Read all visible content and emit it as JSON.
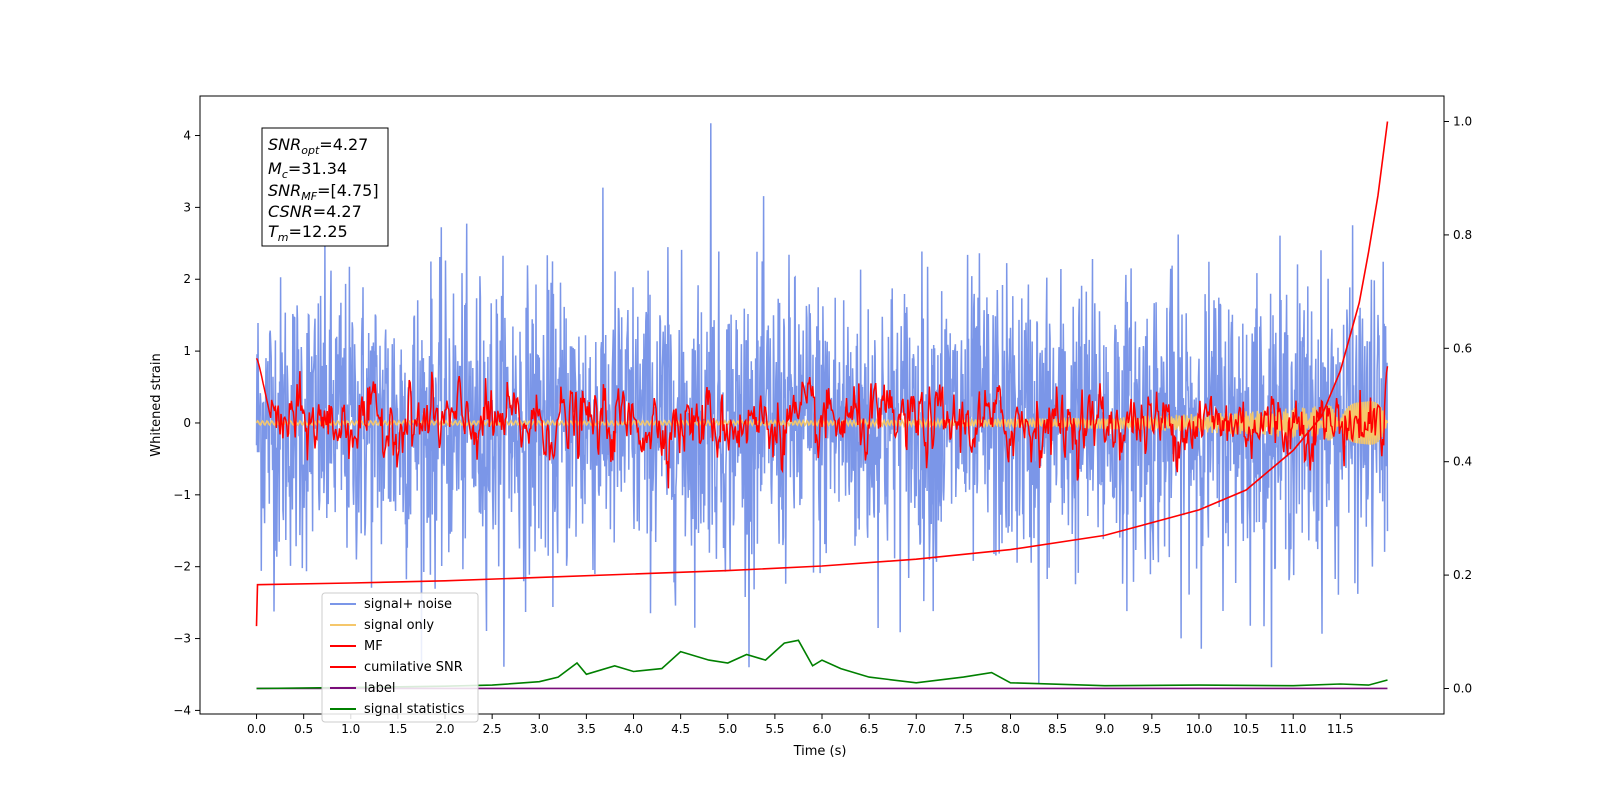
{
  "chart_data": {
    "type": "line",
    "xlabel": "Time (s)",
    "ylabel": "Whitened strain",
    "xlim": [
      -0.6,
      12.6
    ],
    "ylim": [
      -4.05,
      4.55
    ],
    "y2lim": [
      -0.045,
      1.045
    ],
    "xticks": [
      "0.0",
      "0.5",
      "1.0",
      "1.5",
      "2.0",
      "2.5",
      "3.0",
      "3.5",
      "4.0",
      "4.5",
      "5.0",
      "5.5",
      "6.0",
      "6.5",
      "7.0",
      "7.5",
      "8.0",
      "8.5",
      "9.0",
      "9.5",
      "10.0",
      "10.5",
      "11.0",
      "11.5"
    ],
    "yticks": [
      "4",
      "3",
      "2",
      "1",
      "0",
      "−1",
      "−2",
      "−3",
      "−4"
    ],
    "y2ticks": [
      "1.0",
      "0.8",
      "0.6",
      "0.4",
      "0.2",
      "0.0"
    ],
    "colors": {
      "noise": "#7b96e8",
      "signal": "#f5c76b",
      "mf": "#ff0000",
      "csnr": "#ff0000",
      "label": "#7a0d7a",
      "stats": "#008000"
    },
    "legend": {
      "placement": "lower-left",
      "entries": [
        "signal+ noise",
        "signal only",
        "MF",
        "cumilative SNR",
        "label",
        "signal statistics"
      ]
    },
    "annotation": {
      "snr_opt": "4.27",
      "mc": "31.34",
      "snr_mf": "[4.75]",
      "csnr": "4.27",
      "tm": "12.25"
    },
    "series_summary": {
      "signal_noise": {
        "x_range": [
          0.0,
          12.0
        ],
        "mean": 0.0,
        "std_approx": 1.0,
        "max": 4.17,
        "min": -3.62
      },
      "mf": {
        "x_range": [
          0.0,
          12.0
        ],
        "start_value": 0.9,
        "typical_range": [
          -0.3,
          0.6
        ],
        "end_value": 0.9
      },
      "cumulative_snr": {
        "x": [
          0.0,
          0.01,
          1.0,
          2.0,
          3.0,
          4.0,
          5.0,
          6.0,
          7.0,
          8.0,
          9.0,
          10.0,
          10.5,
          11.0,
          11.3,
          11.5,
          11.7,
          11.8,
          11.9,
          12.0
        ],
        "y": [
          0.11,
          0.183,
          0.186,
          0.19,
          0.196,
          0.202,
          0.208,
          0.216,
          0.228,
          0.245,
          0.27,
          0.315,
          0.35,
          0.42,
          0.48,
          0.56,
          0.68,
          0.77,
          0.87,
          1.0
        ]
      },
      "label": {
        "x": [
          0.0,
          12.0
        ],
        "y": [
          0.0,
          0.0
        ]
      },
      "signal_statistics": {
        "x": [
          0.0,
          1.0,
          2.0,
          2.5,
          3.0,
          3.2,
          3.4,
          3.5,
          3.8,
          4.0,
          4.3,
          4.5,
          4.8,
          5.0,
          5.2,
          5.4,
          5.6,
          5.75,
          5.9,
          6.0,
          6.2,
          6.5,
          7.0,
          7.5,
          7.8,
          8.0,
          9.0,
          10.0,
          11.0,
          11.5,
          11.8,
          12.0
        ],
        "y": [
          0.0,
          0.002,
          0.004,
          0.006,
          0.012,
          0.02,
          0.045,
          0.025,
          0.04,
          0.03,
          0.035,
          0.065,
          0.05,
          0.045,
          0.06,
          0.05,
          0.08,
          0.085,
          0.04,
          0.05,
          0.035,
          0.02,
          0.01,
          0.02,
          0.028,
          0.01,
          0.005,
          0.006,
          0.005,
          0.008,
          0.006,
          0.015
        ]
      }
    }
  }
}
